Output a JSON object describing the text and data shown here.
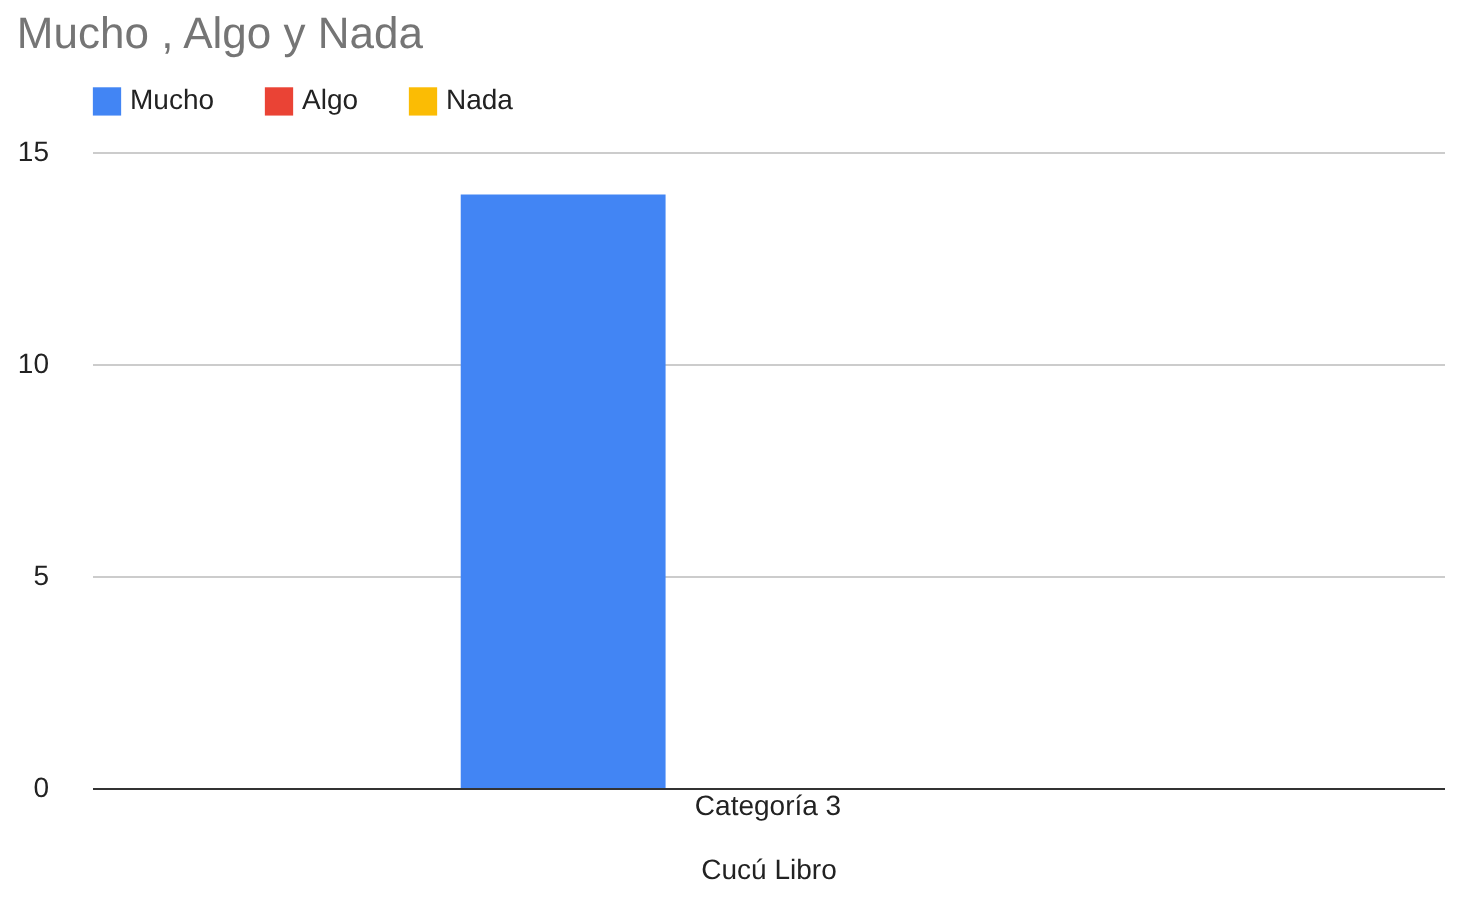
{
  "chart_data": {
    "type": "bar",
    "title": "Mucho , Algo  y Nada",
    "xlabel": "Cucú Libro",
    "categories": [
      "Categoría 3"
    ],
    "series": [
      {
        "name": "Mucho",
        "color": "#4285f4",
        "values": [
          14
        ]
      },
      {
        "name": "Algo",
        "color": "#ea4335",
        "values": [
          0
        ]
      },
      {
        "name": "Nada",
        "color": "#fbbc04",
        "values": [
          0
        ]
      }
    ],
    "ylim": [
      0,
      15
    ],
    "yticks": [
      0,
      5,
      10,
      15
    ],
    "grid": "y",
    "legend": "top"
  }
}
